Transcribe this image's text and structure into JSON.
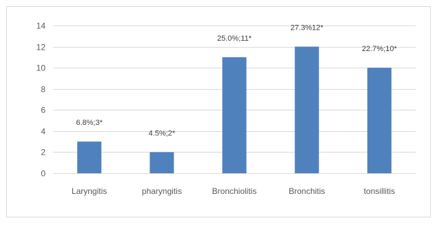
{
  "chart_data": {
    "type": "bar",
    "title": "",
    "xlabel": "",
    "ylabel": "",
    "categories": [
      "Laryngitis",
      "pharyngitis",
      "Bronchiolitis",
      "Bronchitis",
      "tonsillitis"
    ],
    "values": [
      3,
      2,
      11,
      12,
      10
    ],
    "data_labels": [
      "6.8%;3*",
      "4.5%;2*",
      "25.0%;11*",
      "27.3%12*",
      "22.7%;10*"
    ],
    "ylim": [
      0,
      14
    ],
    "yticks": [
      0,
      2,
      4,
      6,
      8,
      10,
      12,
      14
    ],
    "grid": true,
    "legend": "none",
    "bar_color": "#4f81bd"
  }
}
